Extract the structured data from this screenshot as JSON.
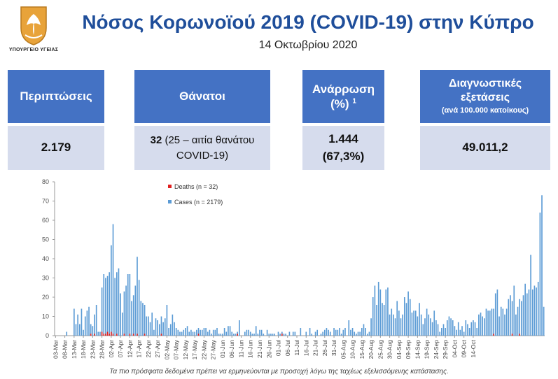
{
  "logo": {
    "text": "ΥΠΟΥΡΓΕΙΟ ΥΓΕΙΑΣ",
    "name": "cyprus-ministry-of-health-emblem"
  },
  "title": "Νόσος Κορωνοϊού 2019 (COVID-19) στην Κύπρο",
  "date": "14 Οκτωβρίου 2020",
  "boxes": {
    "cases": {
      "header": "Περιπτώσεις",
      "value": "2.179"
    },
    "deaths": {
      "header": "Θάνατοι",
      "value_bold": "32",
      "value_rest": "(25 – αιτία θανάτου COVID-19)"
    },
    "recovery": {
      "header": "Ανάρρωση (%)",
      "sup": "1",
      "value_line1": "1.444",
      "value_line2": "(67,3%)"
    },
    "tests": {
      "header_main": "Διαγνωστικές εξετάσεις",
      "header_small": "(ανά 100.000 κατοίκους)",
      "value": "49.011,2"
    }
  },
  "colors": {
    "header_bg": "#4472c4",
    "value_bg": "#d6dced",
    "title": "#1f4e9a",
    "cases": "#5b9bd5",
    "deaths": "#e02020"
  },
  "footnote": "Τα πιο πρόσφατα δεδομένα πρέπει να ερμηνεύονται με προσοχή λόγω της ταχέως εξελισσόμενης κατάστασης.",
  "chart_data": {
    "type": "bar",
    "start_date": "03-Mar",
    "end_date": "14-Oct",
    "ylim": [
      0,
      80
    ],
    "yticks": [
      0,
      10,
      20,
      30,
      40,
      50,
      60,
      70,
      80
    ],
    "xtick_labels": [
      "03-Mar",
      "08-Mar",
      "13-Mar",
      "18-Mar",
      "23-Mar",
      "28-Mar",
      "02-Apr",
      "07-Apr",
      "12-Apr",
      "17-Apr",
      "22-Apr",
      "27-Apr",
      "02-May",
      "07-May",
      "12-May",
      "17-May",
      "22-May",
      "27-May",
      "01-Jun",
      "06-Jun",
      "11-Jun",
      "16-Jun",
      "21-Jun",
      "26-Jun",
      "01-Jul",
      "06-Jul",
      "11-Jul",
      "16-Jul",
      "21-Jul",
      "26-Jul",
      "31-Jul",
      "05-Aug",
      "10-Aug",
      "15-Aug",
      "20-Aug",
      "25-Aug",
      "30-Aug",
      "04-Sep",
      "09-Sep",
      "14-Sep",
      "19-Sep",
      "24-Sep",
      "29-Sep",
      "04-Oct",
      "09-Oct",
      "14-Oct"
    ],
    "legend": {
      "position": "top-left",
      "entries": [
        {
          "label": "Deaths (n = 32)",
          "color": "#e02020"
        },
        {
          "label": "Cases (n = 2179)",
          "color": "#5b9bd5"
        }
      ]
    },
    "series": [
      {
        "name": "Cases (n = 2179)",
        "values": [
          0,
          0,
          0,
          0,
          0,
          0,
          2,
          0,
          0,
          0,
          14,
          6,
          11,
          6,
          14,
          3,
          10,
          13,
          15,
          6,
          5,
          11,
          16,
          2,
          2,
          25,
          32,
          30,
          31,
          33,
          47,
          58,
          30,
          33,
          35,
          22,
          12,
          23,
          26,
          32,
          32,
          18,
          21,
          26,
          41,
          29,
          18,
          17,
          16,
          10,
          10,
          7,
          12,
          3,
          9,
          8,
          6,
          10,
          7,
          9,
          16,
          4,
          6,
          11,
          7,
          4,
          3,
          2,
          2,
          3,
          4,
          5,
          2,
          3,
          2,
          2,
          3,
          4,
          3,
          3,
          4,
          4,
          2,
          3,
          1,
          3,
          3,
          4,
          1,
          1,
          1,
          4,
          2,
          5,
          5,
          2,
          1,
          1,
          2,
          8,
          0,
          0,
          2,
          3,
          3,
          2,
          1,
          1,
          5,
          1,
          3,
          3,
          1,
          0,
          3,
          1,
          1,
          1,
          1,
          0,
          2,
          1,
          2,
          1,
          1,
          0,
          2,
          0,
          2,
          2,
          0,
          0,
          4,
          0,
          0,
          2,
          0,
          4,
          1,
          0,
          2,
          3,
          0,
          1,
          2,
          3,
          4,
          3,
          2,
          0,
          4,
          3,
          3,
          4,
          1,
          3,
          4,
          0,
          8,
          3,
          4,
          2,
          1,
          2,
          2,
          4,
          6,
          4,
          1,
          2,
          9,
          20,
          26,
          16,
          28,
          24,
          17,
          16,
          24,
          25,
          11,
          14,
          11,
          9,
          18,
          13,
          9,
          11,
          20,
          17,
          23,
          19,
          12,
          13,
          13,
          10,
          17,
          11,
          6,
          9,
          14,
          11,
          9,
          7,
          13,
          8,
          6,
          2,
          4,
          6,
          4,
          8,
          10,
          9,
          8,
          5,
          3,
          7,
          3,
          5,
          2,
          8,
          6,
          4,
          7,
          8,
          7,
          4,
          11,
          12,
          10,
          9,
          14,
          13,
          13,
          14,
          14,
          22,
          24,
          10,
          15,
          14,
          11,
          14,
          19,
          21,
          18,
          26,
          11,
          15,
          19,
          18,
          21,
          27,
          22,
          24,
          42,
          24,
          26,
          25,
          28,
          64,
          73,
          15
        ]
      },
      {
        "name": "Deaths (n = 32)",
        "values": [
          0,
          0,
          0,
          0,
          0,
          0,
          0,
          0,
          0,
          0,
          0,
          0,
          0,
          0,
          0,
          0,
          0,
          0,
          0,
          1,
          0,
          1,
          0,
          0,
          0,
          2,
          1,
          1,
          2,
          1,
          2,
          1,
          0,
          1,
          0,
          0,
          0,
          1,
          0,
          0,
          1,
          0,
          1,
          0,
          1,
          0,
          0,
          0,
          1,
          0,
          0,
          0,
          0,
          0,
          0,
          0,
          0,
          1,
          0,
          0,
          0,
          0,
          0,
          0,
          0,
          0,
          0,
          0,
          0,
          0,
          0,
          0,
          0,
          0,
          0,
          0,
          0,
          1,
          0,
          0,
          0,
          0,
          0,
          0,
          0,
          0,
          0,
          0,
          0,
          0,
          0,
          0,
          0,
          0,
          0,
          0,
          0,
          0,
          1,
          0,
          0,
          0,
          0,
          0,
          0,
          0,
          0,
          0,
          0,
          0,
          0,
          0,
          0,
          0,
          0,
          0,
          0,
          0,
          0,
          0,
          0,
          0,
          1,
          0,
          0,
          0,
          0,
          0,
          0,
          0,
          0,
          0,
          0,
          0,
          0,
          0,
          0,
          0,
          0,
          0,
          0,
          0,
          0,
          0,
          0,
          0,
          0,
          0,
          0,
          0,
          0,
          0,
          0,
          0,
          0,
          0,
          0,
          0,
          0,
          0,
          0,
          0,
          0,
          0,
          0,
          0,
          0,
          0,
          0,
          0,
          0,
          0,
          0,
          0,
          0,
          0,
          0,
          0,
          0,
          0,
          0,
          0,
          0,
          0,
          0,
          0,
          0,
          0,
          0,
          0,
          0,
          0,
          0,
          0,
          0,
          0,
          0,
          0,
          0,
          0,
          0,
          0,
          0,
          0,
          0,
          0,
          0,
          0,
          0,
          0,
          0,
          0,
          0,
          0,
          0,
          0,
          0,
          0,
          0,
          0,
          0,
          0,
          0,
          0,
          0,
          0,
          0,
          0,
          0,
          0,
          0,
          0,
          0,
          0,
          0,
          0,
          1,
          0,
          0,
          0,
          0,
          0,
          0,
          0,
          0,
          0,
          1,
          0,
          0,
          0,
          1,
          0,
          0,
          0,
          0,
          0,
          0,
          0,
          0,
          0,
          0
        ]
      }
    ]
  }
}
